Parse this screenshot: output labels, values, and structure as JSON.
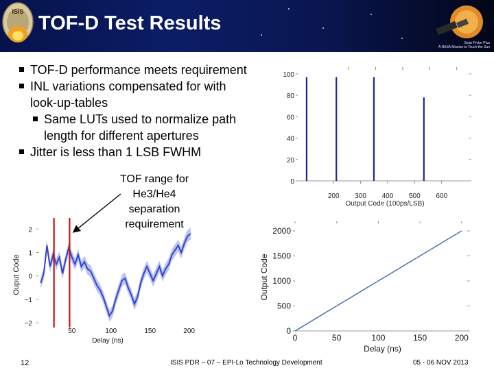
{
  "slide": {
    "title": "TOF-D Test Results",
    "logo_text": "ISIS",
    "tagline_line1": "Solar Probe Plus",
    "tagline_line2": "A NASA Mission to Touch the Sun",
    "bullets": [
      {
        "text": "TOF-D performance meets requirement",
        "level": 1
      },
      {
        "text": "INL variations compensated for with",
        "level": 1,
        "cont": "look-up-tables"
      },
      {
        "text": "Same LUTs used to normalize path",
        "level": 2,
        "cont": "length for different apertures"
      },
      {
        "text": "Jitter is less than 1 LSB FWHM",
        "level": 1
      }
    ],
    "callout": [
      "TOF range for",
      "He3/He4",
      "separation",
      "requirement"
    ],
    "colors": {
      "header": "#0b1d66",
      "bars": "#1a2a8c",
      "noise": "#3344cc",
      "marker": "#cc1111",
      "line": "#4466aa"
    }
  },
  "footer": {
    "page": "12",
    "center": "ISIS PDR – 07 – EPI-Lo Technology Development",
    "date": "05 - 06 NOV 2013"
  },
  "chart_data": [
    {
      "type": "bar",
      "xlabel": "Output Code (100ps/LSB)",
      "ylabel": "",
      "xlim": [
        70,
        710
      ],
      "ylim": [
        0,
        105
      ],
      "xticks": [
        "200",
        "300",
        "400",
        "500",
        "600"
      ],
      "xtick_values": [
        200,
        300,
        400,
        500,
        600
      ],
      "yticks": [
        "0",
        "20",
        "40",
        "60",
        "80",
        "100"
      ],
      "ytick_values": [
        0,
        20,
        40,
        60,
        80,
        100
      ],
      "bars": [
        {
          "x": 100,
          "value": 97
        },
        {
          "x": 210,
          "value": 97
        },
        {
          "x": 349,
          "value": 97
        },
        {
          "x": 534,
          "value": 78
        }
      ]
    },
    {
      "type": "line",
      "xlabel": "Delay (ns)",
      "ylabel": "Output Code",
      "xlim": [
        0,
        210
      ],
      "ylim": [
        0,
        2150
      ],
      "xticks": [
        "0",
        "50",
        "100",
        "150",
        "200"
      ],
      "xtick_values": [
        0,
        50,
        100,
        150,
        200
      ],
      "yticks": [
        "0",
        "500",
        "1000",
        "1500",
        "2000"
      ],
      "ytick_values": [
        0,
        500,
        1000,
        1500,
        2000
      ],
      "series": [
        {
          "x": [
            0,
            200
          ],
          "y": [
            0,
            2000
          ]
        }
      ]
    },
    {
      "type": "line",
      "xlabel": "Delay (ns)",
      "ylabel": "Ouput Code",
      "xlim": [
        8,
        210
      ],
      "ylim": [
        -2.2,
        2.3
      ],
      "xticks": [
        "50",
        "100",
        "150",
        "200"
      ],
      "xtick_values": [
        50,
        100,
        150,
        200
      ],
      "yticks": [
        "2",
        "1",
        "0",
        "−1",
        "−2"
      ],
      "ytick_values": [
        2,
        1,
        0,
        -1,
        -2
      ],
      "markers": [
        27,
        47
      ],
      "series": [
        {
          "x": [
            10,
            14,
            18,
            22,
            26,
            30,
            34,
            38,
            42,
            46,
            50,
            54,
            58,
            62,
            66,
            70,
            74,
            78,
            82,
            86,
            90,
            94,
            98,
            102,
            106,
            110,
            114,
            118,
            122,
            126,
            130,
            134,
            138,
            142,
            146,
            150,
            154,
            158,
            162,
            166,
            170,
            174,
            178,
            182,
            186,
            190,
            194,
            198,
            202
          ],
          "y": [
            -0.3,
            0.1,
            1.3,
            0.4,
            0.9,
            0.5,
            0.8,
            0.1,
            0.7,
            1.2,
            0.8,
            0.5,
            0.9,
            0.4,
            0.6,
            0.3,
            0.2,
            -0.1,
            -0.4,
            -0.6,
            -0.9,
            -1.3,
            -1.7,
            -1.5,
            -1.0,
            -0.6,
            -0.2,
            -0.1,
            -0.5,
            -0.8,
            -1.2,
            -0.9,
            -0.3,
            0.1,
            0.4,
            0.1,
            -0.2,
            0.1,
            0.4,
            0.0,
            0.3,
            0.5,
            0.9,
            1.1,
            1.3,
            1.0,
            1.4,
            1.7,
            1.8
          ]
        }
      ]
    }
  ]
}
